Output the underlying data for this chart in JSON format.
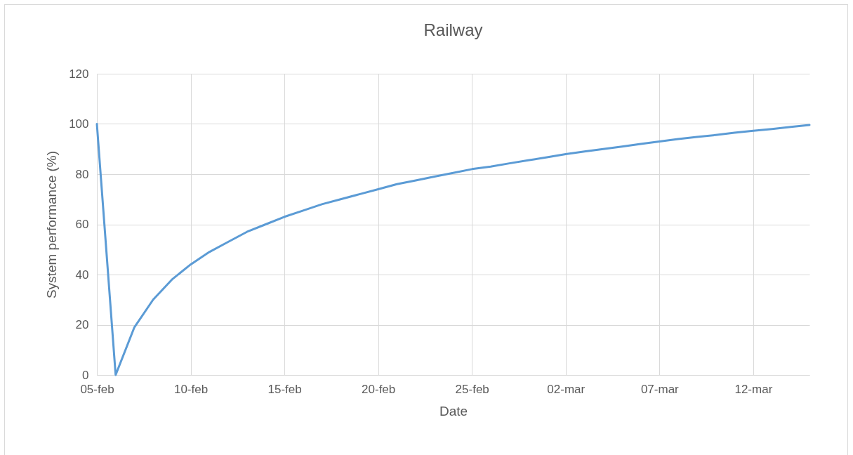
{
  "chart_data": {
    "type": "line",
    "title": "Railway",
    "xlabel": "Date",
    "ylabel": "System performance (%)",
    "x": [
      "--02-05",
      "--02-06",
      "--02-07",
      "--02-08",
      "--02-09",
      "--02-10",
      "--02-11",
      "--02-12",
      "--02-13",
      "--02-14",
      "--02-15",
      "--02-16",
      "--02-17",
      "--02-18",
      "--02-19",
      "--02-20",
      "--02-21",
      "--02-22",
      "--02-23",
      "--02-24",
      "--02-25",
      "--02-26",
      "--02-27",
      "--02-28",
      "--03-01",
      "--03-02",
      "--03-03",
      "--03-04",
      "--03-05",
      "--03-06",
      "--03-07",
      "--03-08",
      "--03-09",
      "--03-10",
      "--03-11",
      "--03-12",
      "--03-13",
      "--03-14",
      "--03-15"
    ],
    "series": [
      {
        "color": "#5b9bd5",
        "values": [
          100,
          0,
          19,
          30,
          38,
          44,
          49,
          53,
          57,
          60,
          63,
          65.5,
          68,
          70,
          72,
          74,
          76,
          77.5,
          79,
          80.5,
          82,
          83,
          84.3,
          85.5,
          86.7,
          88,
          89,
          90,
          91,
          92,
          93,
          94,
          94.8,
          95.6,
          96.5,
          97.3,
          98,
          98.8,
          99.6
        ]
      }
    ],
    "xlim": [
      "--02-05",
      "--03-15"
    ],
    "xticks": [
      {
        "value": "--02-05",
        "label": "05-feb"
      },
      {
        "value": "--02-10",
        "label": "10-feb"
      },
      {
        "value": "--02-15",
        "label": "15-feb"
      },
      {
        "value": "--02-20",
        "label": "20-feb"
      },
      {
        "value": "--02-25",
        "label": "25-feb"
      },
      {
        "value": "--03-02",
        "label": "02-mar"
      },
      {
        "value": "--03-07",
        "label": "07-mar"
      },
      {
        "value": "--03-12",
        "label": "12-mar"
      }
    ],
    "ylim": [
      0,
      120
    ],
    "yticks": [
      0,
      20,
      40,
      60,
      80,
      100,
      120
    ],
    "grid": true,
    "marker": "none",
    "line_style": "solid"
  }
}
